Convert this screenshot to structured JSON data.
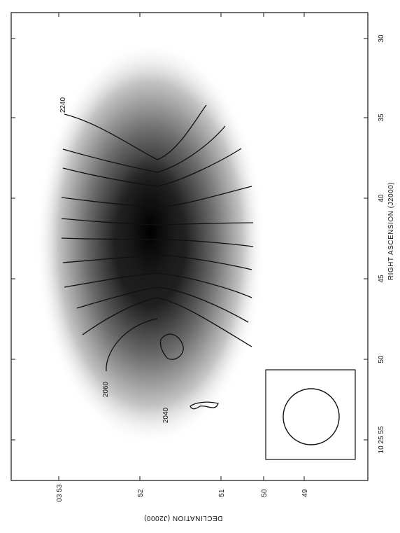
{
  "figure": {
    "x_axis_label": "RIGHT ASCENSION (J2000)",
    "y_axis_label": "DECLINATION (J2000)",
    "x_ticks": [
      "10 25 55",
      "50",
      "45",
      "40",
      "35",
      "30"
    ],
    "y_ticks": [
      "03 53",
      "52",
      "51",
      "50",
      "49"
    ],
    "contour_labels": [
      "2240",
      "2060",
      "2040"
    ]
  },
  "chart_data": {
    "type": "contour",
    "xlabel": "RIGHT ASCENSION (J2000)",
    "ylabel": "DECLINATION (J2000)",
    "x_ticks": [
      "10 25 55",
      "50",
      "45",
      "40",
      "35",
      "30"
    ],
    "y_ticks": [
      "03 53",
      "52",
      "51",
      "50",
      "49"
    ],
    "contour_levels": [
      2040,
      2060,
      2240
    ],
    "greyscale": "intensity image, dark elongated core",
    "beam_ellipse": true,
    "orientation": "rotated 90 degrees"
  }
}
